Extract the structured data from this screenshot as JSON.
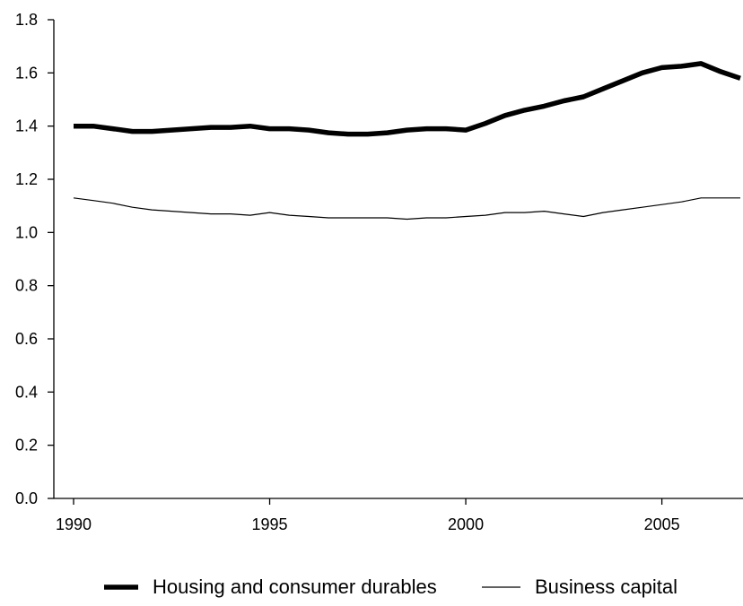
{
  "chart_data": {
    "type": "line",
    "title": "",
    "xlabel": "",
    "ylabel": "",
    "xlim": [
      1990,
      2007
    ],
    "ylim": [
      0.0,
      1.8
    ],
    "x_ticks": [
      1990,
      1995,
      2000,
      2005
    ],
    "x_tick_labels": [
      "1990",
      "1995",
      "2000",
      "2005"
    ],
    "y_ticks": [
      0.0,
      0.2,
      0.4,
      0.6,
      0.8,
      1.0,
      1.2,
      1.4,
      1.6,
      1.8
    ],
    "y_tick_labels": [
      "0.0",
      "0.2",
      "0.4",
      "0.6",
      "0.8",
      "1.0",
      "1.2",
      "1.4",
      "1.6",
      "1.8"
    ],
    "grid": false,
    "legend_position": "bottom",
    "series": [
      {
        "name": "Housing and consumer durables",
        "color": "#000000",
        "line_style": "thick",
        "x": [
          1990,
          1990.5,
          1991,
          1991.5,
          1992,
          1992.5,
          1993,
          1993.5,
          1994,
          1994.5,
          1995,
          1995.5,
          1996,
          1996.5,
          1997,
          1997.5,
          1998,
          1998.5,
          1999,
          1999.5,
          2000,
          2000.5,
          2001,
          2001.5,
          2002,
          2002.5,
          2003,
          2003.5,
          2004,
          2004.5,
          2005,
          2005.5,
          2006,
          2006.5,
          2007
        ],
        "values": [
          1.4,
          1.4,
          1.39,
          1.38,
          1.38,
          1.385,
          1.39,
          1.395,
          1.395,
          1.4,
          1.39,
          1.39,
          1.385,
          1.375,
          1.37,
          1.37,
          1.375,
          1.385,
          1.39,
          1.39,
          1.385,
          1.41,
          1.44,
          1.46,
          1.475,
          1.495,
          1.51,
          1.54,
          1.57,
          1.6,
          1.62,
          1.625,
          1.635,
          1.605,
          1.58
        ]
      },
      {
        "name": "Business capital",
        "color": "#000000",
        "line_style": "thin",
        "x": [
          1990,
          1990.5,
          1991,
          1991.5,
          1992,
          1992.5,
          1993,
          1993.5,
          1994,
          1994.5,
          1995,
          1995.5,
          1996,
          1996.5,
          1997,
          1997.5,
          1998,
          1998.5,
          1999,
          1999.5,
          2000,
          2000.5,
          2001,
          2001.5,
          2002,
          2002.5,
          2003,
          2003.5,
          2004,
          2004.5,
          2005,
          2005.5,
          2006,
          2006.5,
          2007
        ],
        "values": [
          1.13,
          1.12,
          1.11,
          1.095,
          1.085,
          1.08,
          1.075,
          1.07,
          1.07,
          1.065,
          1.075,
          1.065,
          1.06,
          1.055,
          1.055,
          1.055,
          1.055,
          1.05,
          1.055,
          1.055,
          1.06,
          1.065,
          1.075,
          1.075,
          1.08,
          1.07,
          1.06,
          1.075,
          1.085,
          1.095,
          1.105,
          1.115,
          1.13,
          1.13,
          1.13
        ]
      }
    ]
  }
}
